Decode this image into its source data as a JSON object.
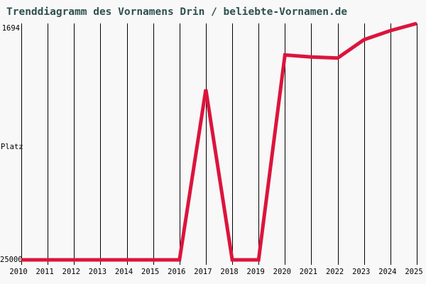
{
  "title": "Trenddiagramm des Vornamens Drin / beliebte-Vornamen.de",
  "y_axis": {
    "top_label": "1694",
    "title": "Platz",
    "bottom_label": "25000"
  },
  "colors": {
    "background": "#f8f8f8",
    "title_text": "#2f4f4f",
    "axis_text": "#000000",
    "gridline": "#000000",
    "trend_line": "#dc143c"
  },
  "chart_data": {
    "type": "line",
    "title": "Trenddiagramm des Vornamens Drin / beliebte-Vornamen.de",
    "x": [
      2010,
      2011,
      2012,
      2013,
      2014,
      2015,
      2016,
      2017,
      2018,
      2019,
      2020,
      2021,
      2022,
      2023,
      2024,
      2025
    ],
    "series": [
      {
        "name": "Drin",
        "values": [
          25000,
          25000,
          25000,
          25000,
          25000,
          25000,
          25000,
          8200,
          25000,
          25000,
          4800,
          5000,
          5100,
          3300,
          2400,
          1694
        ],
        "color": "#dc143c"
      }
    ],
    "xlabel": "",
    "ylabel": "Platz",
    "ylim": [
      1694,
      25000
    ],
    "y_inverted": true,
    "y_tick_labels": [
      "1694",
      "25000"
    ],
    "grid": "vertical-only",
    "legend": "none",
    "note": "Rank chart: value 1694 (best rank) is at the top of the plot, 25000 (worst / not ranked) at the bottom."
  }
}
